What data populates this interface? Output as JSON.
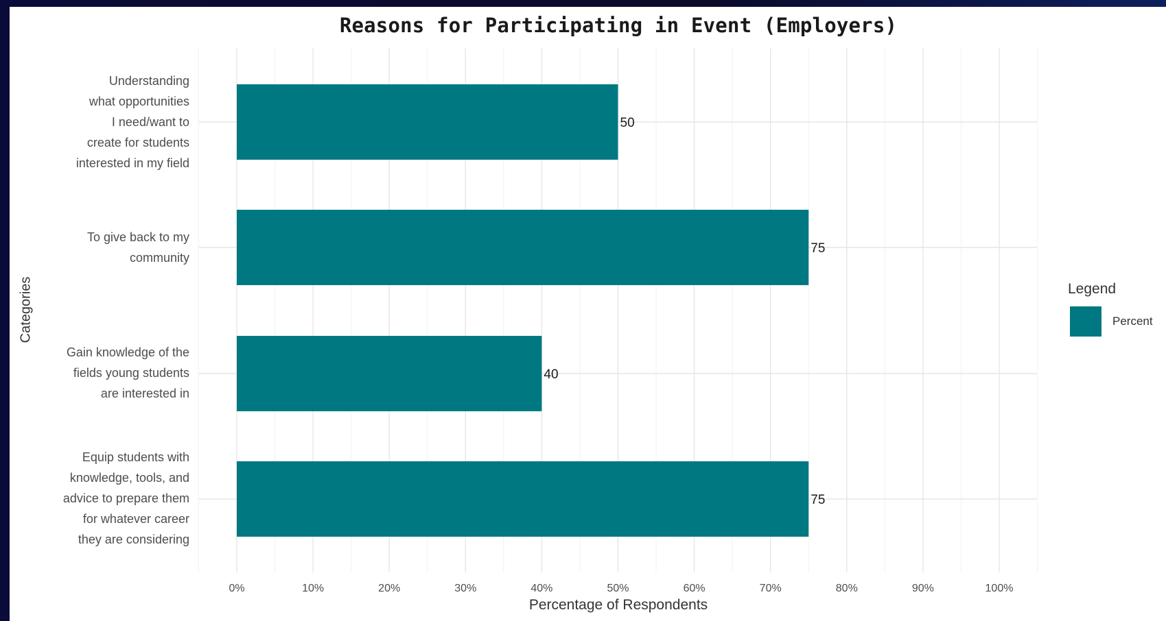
{
  "chart_data": {
    "type": "bar",
    "orientation": "horizontal",
    "title": "Reasons for Participating in Event (Employers)",
    "xlabel": "Percentage of Respondents",
    "ylabel": "Categories",
    "categories": [
      "Understanding\nwhat opportunities\nI need/want to\ncreate for students\ninterested in my field",
      "To give back to my\ncommunity",
      "Gain knowledge of the\nfields young students\nare interested in",
      "Equip students with\nknowledge, tools, and\nadvice to prepare them\nfor whatever career\nthey are considering"
    ],
    "series": [
      {
        "name": "Percent",
        "values": [
          50,
          75,
          40,
          75
        ],
        "color": "#007882"
      }
    ],
    "data_labels": [
      "50",
      "75",
      "40",
      "75"
    ],
    "xlim": [
      0,
      100
    ],
    "xticks": [
      0,
      10,
      20,
      30,
      40,
      50,
      60,
      70,
      80,
      90,
      100
    ],
    "xtick_labels": [
      "0%",
      "10%",
      "20%",
      "30%",
      "40%",
      "50%",
      "60%",
      "70%",
      "80%",
      "90%",
      "100%"
    ],
    "grid": true,
    "legend": {
      "title": "Legend",
      "placement": "right"
    }
  }
}
